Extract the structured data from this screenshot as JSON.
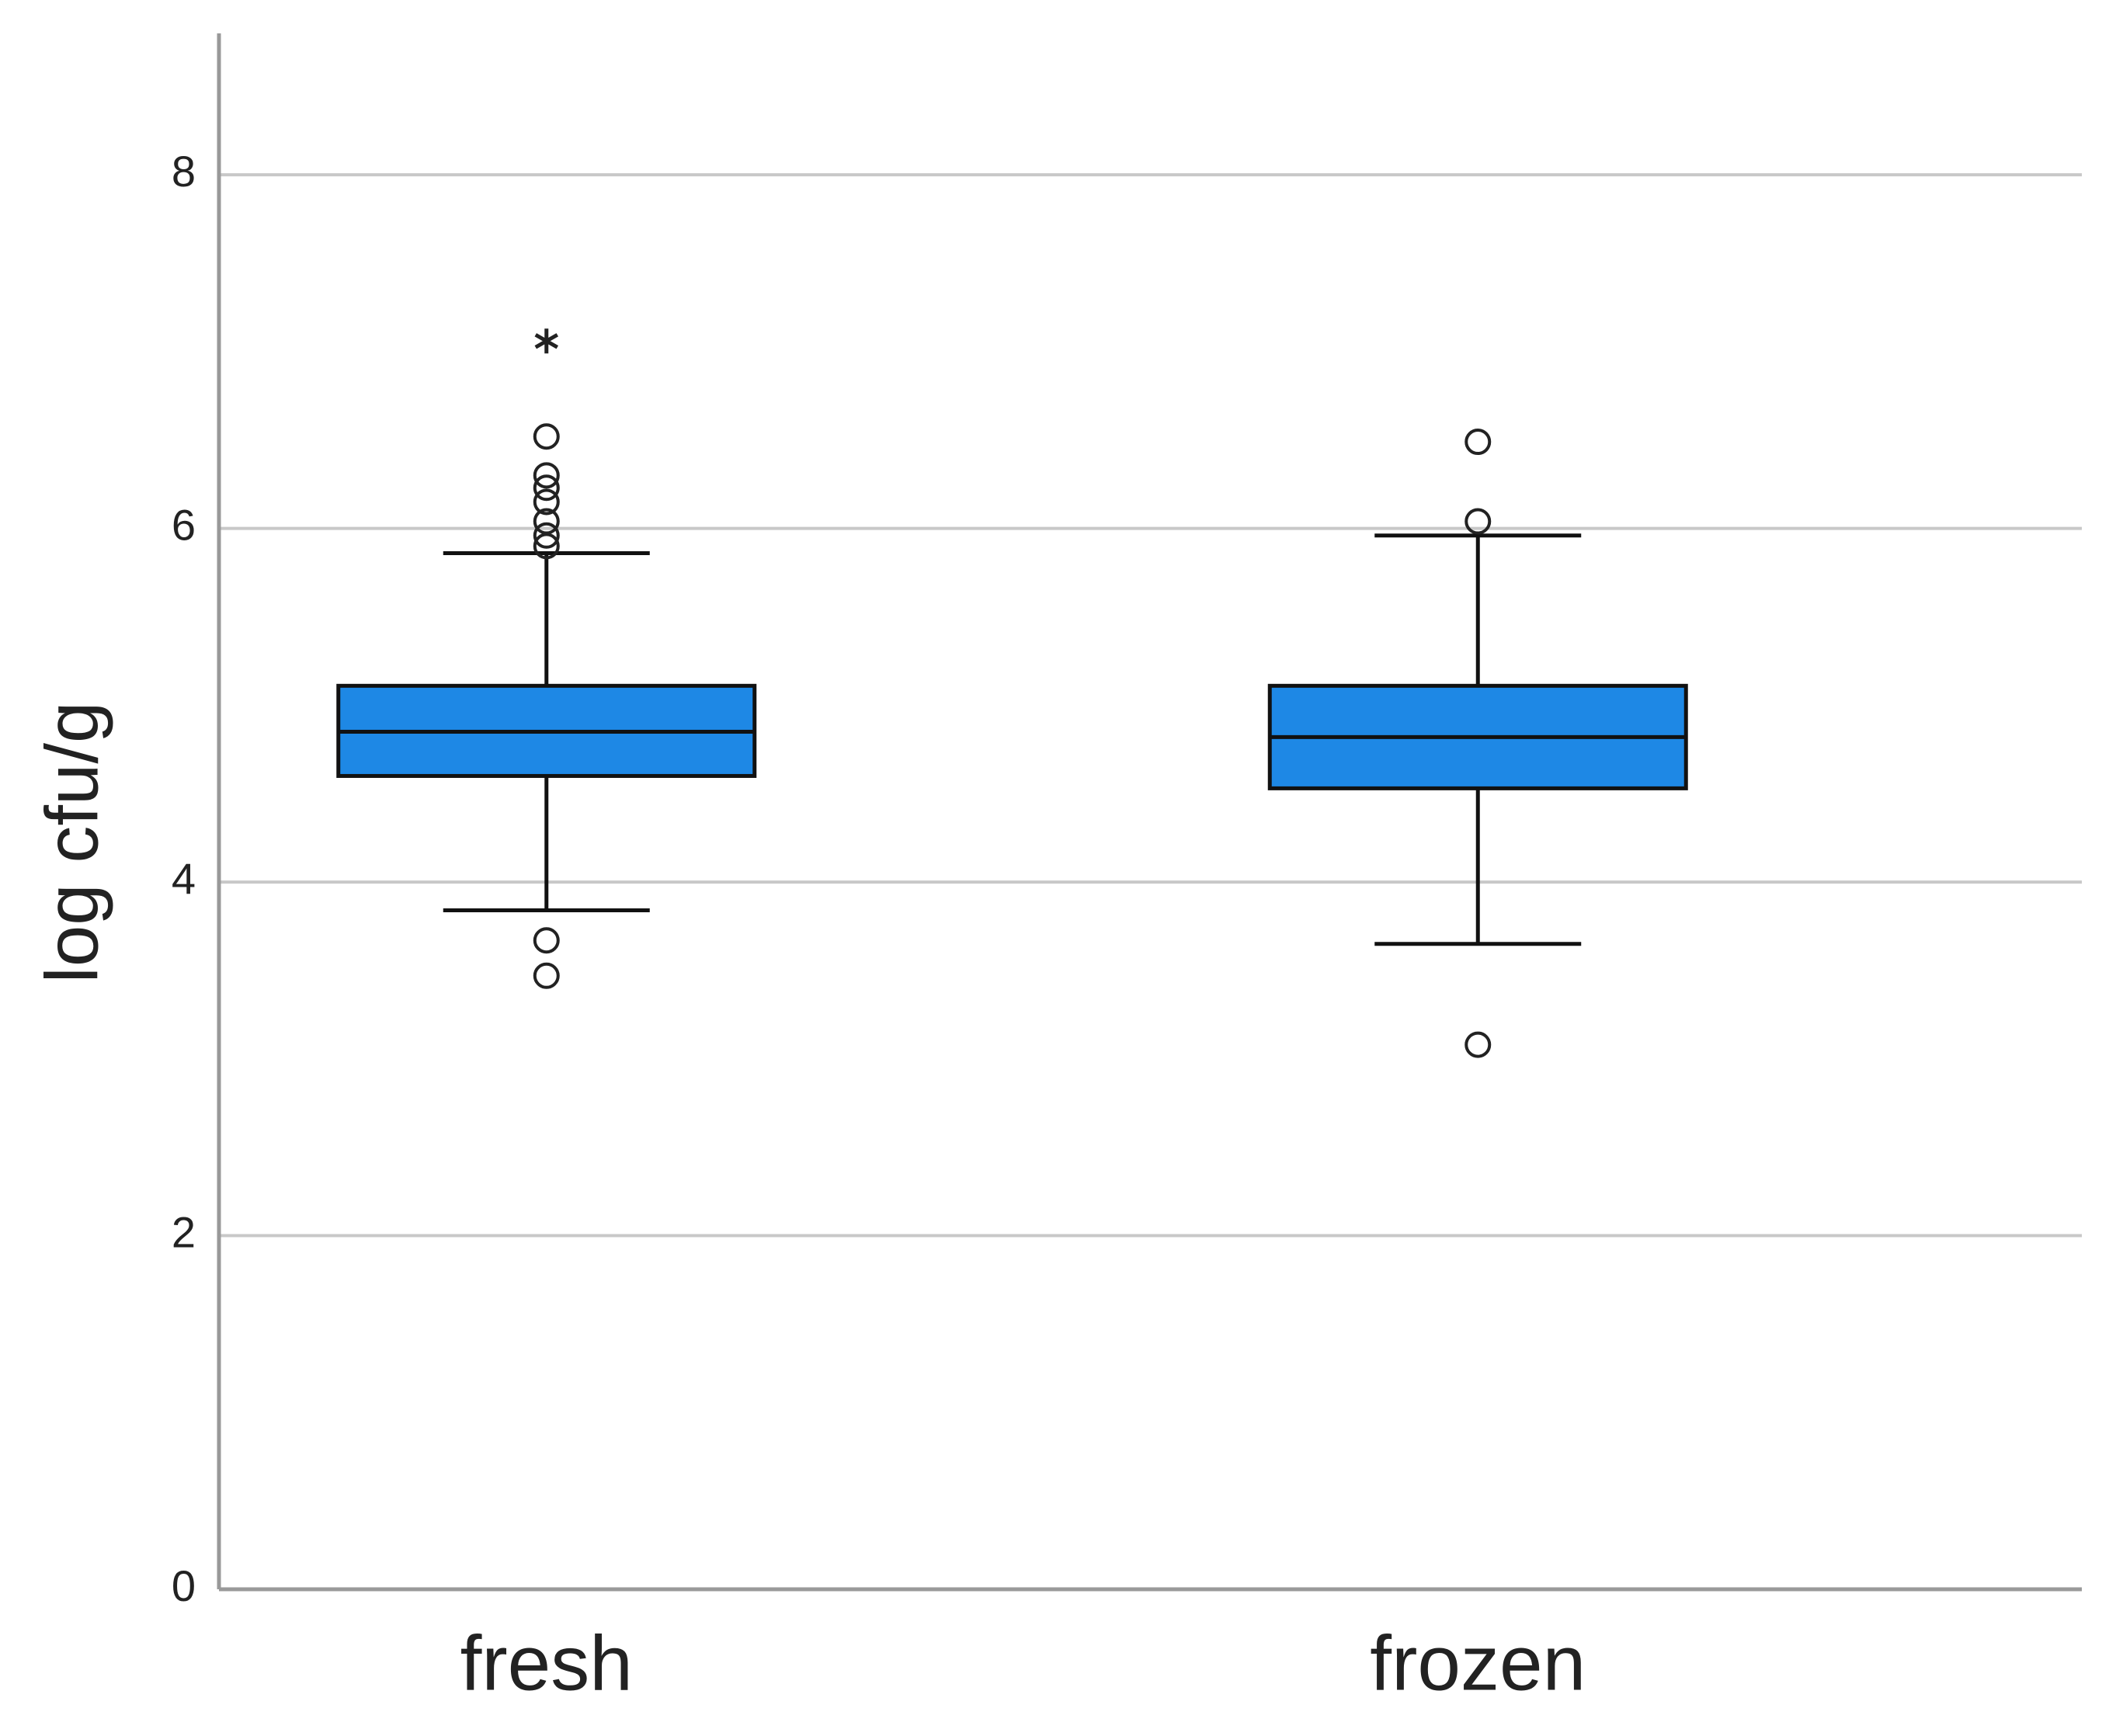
{
  "chart_data": {
    "type": "box",
    "y_label": "log cfu/g",
    "categories": [
      "fresh",
      "frozen"
    ],
    "color": "#1e88e5",
    "whisker_low": [
      3.84,
      3.65
    ],
    "q1": [
      4.6,
      4.53
    ],
    "median": [
      4.85,
      4.82
    ],
    "q3": [
      5.11,
      5.11
    ],
    "whisker_high": [
      5.86,
      5.96
    ],
    "outliers": [
      [
        6.52,
        6.3,
        6.23,
        6.15,
        6.04,
        5.96,
        5.9,
        3.67,
        3.47
      ],
      [
        6.49,
        6.04,
        3.08
      ]
    ],
    "extremes": [
      [
        7.06
      ],
      []
    ],
    "ylim": [
      0,
      8.8
    ],
    "yticks": [
      0,
      2,
      4,
      6,
      8
    ],
    "grid": true
  }
}
